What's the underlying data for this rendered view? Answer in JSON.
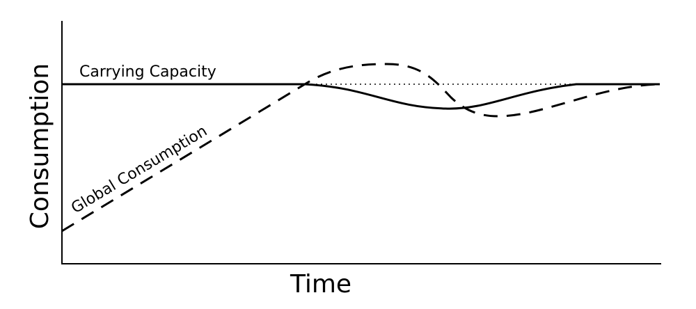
{
  "chart_data": {
    "type": "line",
    "xlabel": "Time",
    "ylabel": "Consumption",
    "series": [
      {
        "name": "Carrying Capacity"
      },
      {
        "name": "Global Consumption"
      }
    ]
  }
}
